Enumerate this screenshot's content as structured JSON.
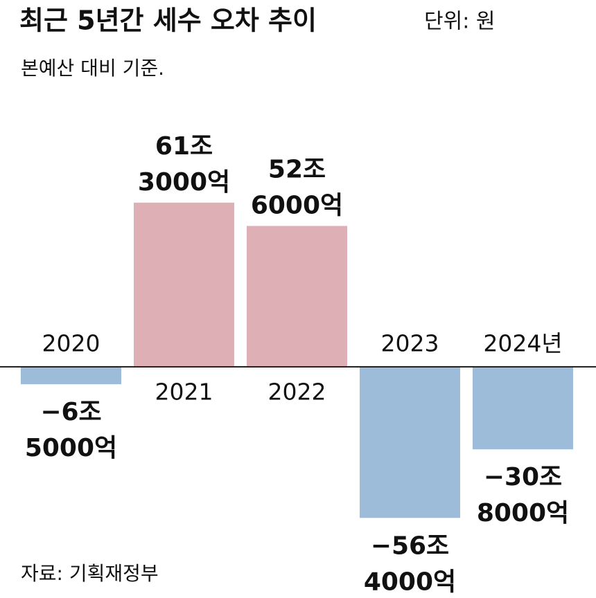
{
  "chart_data": {
    "type": "bar",
    "title": "최근 5년간 세수 오차 추이",
    "unit": "단위: 원",
    "subtitle": "본예산 대비 기준.",
    "source": "자료: 기획재정부",
    "categories": [
      "2020",
      "2021",
      "2022",
      "2023",
      "2024년"
    ],
    "values": [
      -6.5,
      61.3,
      52.6,
      -56.4,
      -30.8
    ],
    "value_labels": [
      [
        "−6조",
        "5000억"
      ],
      [
        "61조",
        "3000억"
      ],
      [
        "52조",
        "6000억"
      ],
      [
        "−56조",
        "4000억"
      ],
      [
        "−30조",
        "8000억"
      ]
    ],
    "positive_color": "#dfafb6",
    "negative_color": "#9dbcd9"
  }
}
